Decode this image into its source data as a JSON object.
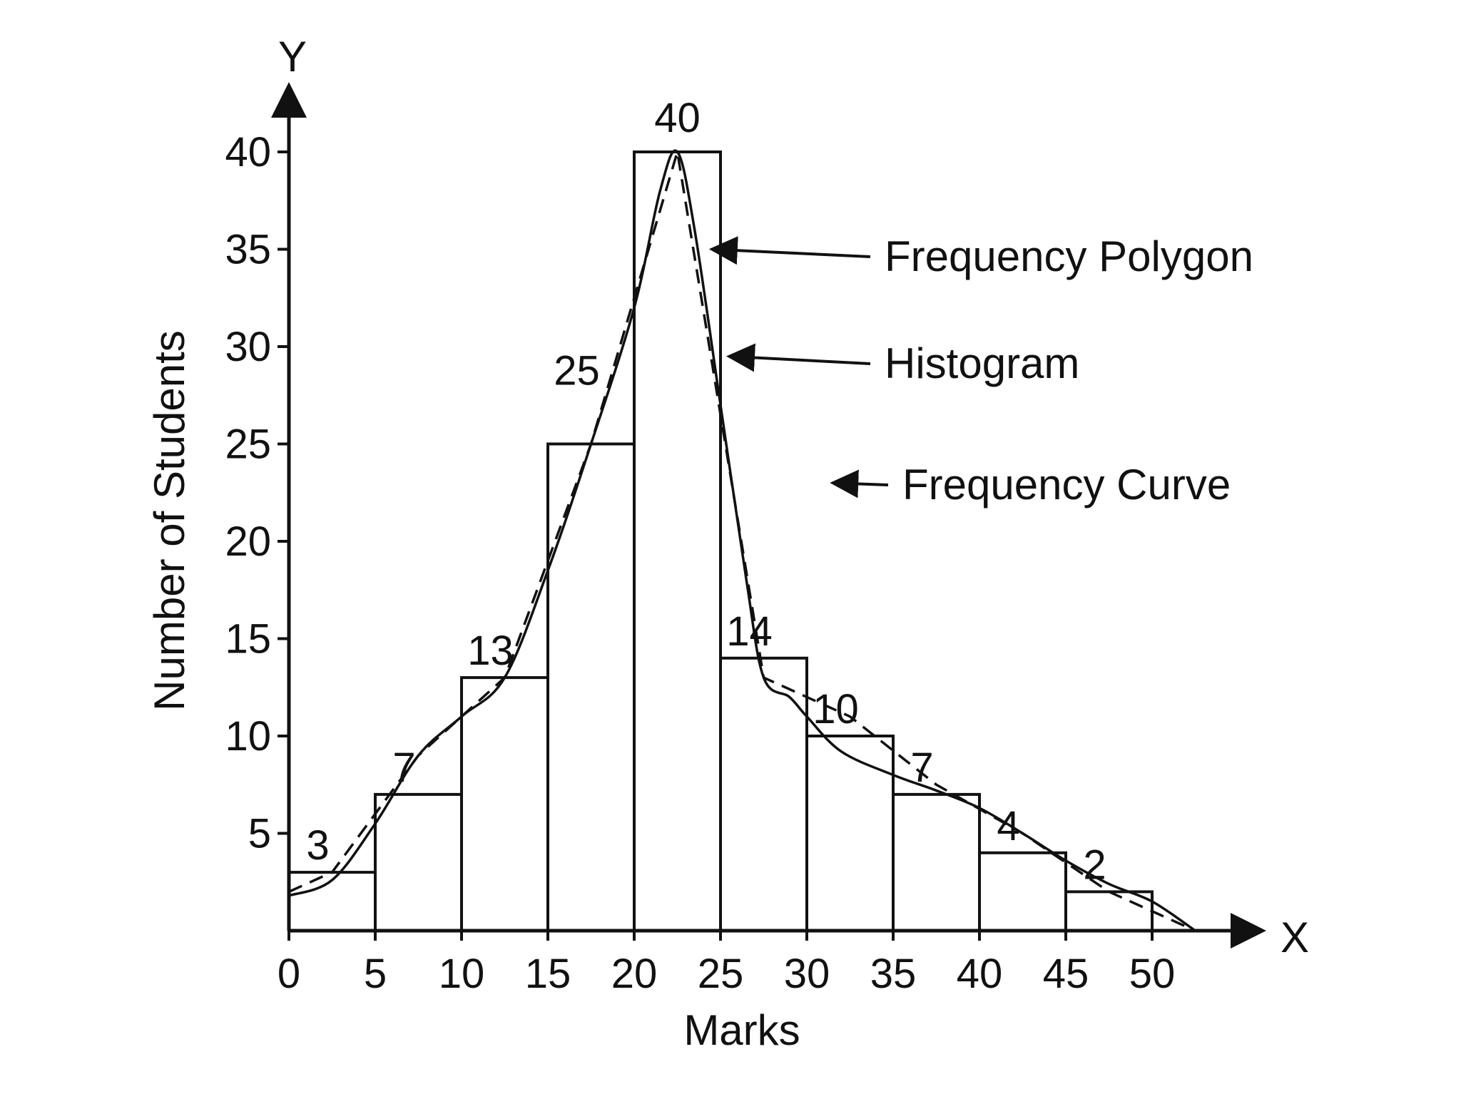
{
  "chart_data": {
    "type": "bar",
    "xlabel": "Marks",
    "ylabel": "Number of Students",
    "x_axis_letter": "X",
    "y_axis_letter": "Y",
    "xlim": [
      0,
      52
    ],
    "ylim": [
      0,
      40
    ],
    "x_ticks": [
      "0",
      "5",
      "10",
      "15",
      "20",
      "25",
      "30",
      "35",
      "40",
      "45",
      "50"
    ],
    "y_ticks": [
      "5",
      "10",
      "15",
      "20",
      "25",
      "30",
      "35",
      "40"
    ],
    "bars": [
      {
        "from": 0,
        "to": 5,
        "value": 3,
        "label": "3"
      },
      {
        "from": 5,
        "to": 10,
        "value": 7,
        "label": "7"
      },
      {
        "from": 10,
        "to": 15,
        "value": 13,
        "label": "13"
      },
      {
        "from": 15,
        "to": 20,
        "value": 25,
        "label": "25"
      },
      {
        "from": 20,
        "to": 25,
        "value": 40,
        "label": "40"
      },
      {
        "from": 25,
        "to": 30,
        "value": 14,
        "label": "14"
      },
      {
        "from": 30,
        "to": 35,
        "value": 10,
        "label": "10"
      },
      {
        "from": 35,
        "to": 40,
        "value": 7,
        "label": "7"
      },
      {
        "from": 40,
        "to": 45,
        "value": 4,
        "label": "4"
      },
      {
        "from": 45,
        "to": 50,
        "value": 2,
        "label": "2"
      }
    ],
    "polygon_points": [
      [
        0,
        2
      ],
      [
        2.5,
        3
      ],
      [
        7.5,
        9
      ],
      [
        12.5,
        13
      ],
      [
        17.5,
        25
      ],
      [
        22.5,
        40
      ],
      [
        27.5,
        13
      ],
      [
        32.5,
        11
      ],
      [
        37.5,
        7.5
      ],
      [
        42.5,
        5
      ],
      [
        47.5,
        2
      ],
      [
        52.5,
        0
      ]
    ],
    "curve_points": [
      [
        0,
        1.8
      ],
      [
        2.5,
        2.6
      ],
      [
        5,
        5.5
      ],
      [
        7.5,
        9
      ],
      [
        10,
        11
      ],
      [
        12.5,
        13
      ],
      [
        15,
        18.5
      ],
      [
        17.5,
        25
      ],
      [
        20,
        32
      ],
      [
        21.5,
        38
      ],
      [
        22.5,
        40
      ],
      [
        23.5,
        36
      ],
      [
        25,
        27
      ],
      [
        26.5,
        18
      ],
      [
        27.5,
        13
      ],
      [
        29,
        12
      ],
      [
        30,
        11
      ],
      [
        32,
        9.2
      ],
      [
        35,
        8
      ],
      [
        37.5,
        7.2
      ],
      [
        40,
        6.3
      ],
      [
        42.5,
        5
      ],
      [
        45,
        3.6
      ],
      [
        47.5,
        2.4
      ],
      [
        50,
        1.5
      ],
      [
        52.5,
        0
      ]
    ],
    "annotations": [
      {
        "text": "Frequency Polygon",
        "target": [
          24,
          35
        ]
      },
      {
        "text": "Histogram",
        "target": [
          25,
          29.5
        ]
      },
      {
        "text": "Frequency Curve",
        "target": [
          31,
          23
        ]
      }
    ]
  }
}
